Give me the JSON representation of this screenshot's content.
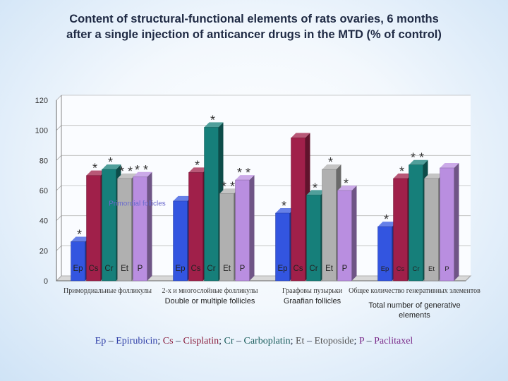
{
  "title_line1": "Content of structural-functional elements of rats ovaries, 6 months",
  "title_line2": "after a single injection of anticancer drugs in the MTD (% of control)",
  "chart_data": {
    "type": "bar",
    "ylim": [
      0,
      120
    ],
    "yticks": [
      0,
      20,
      40,
      60,
      80,
      100,
      120
    ],
    "grid": true,
    "series_codes": [
      "Ep",
      "Cs",
      "Cr",
      "Et",
      "P"
    ],
    "series_colors": [
      "#3355e0",
      "#a0204a",
      "#167f7a",
      "#b0b0b0",
      "#b98ee0"
    ],
    "categories": [
      {
        "label_ru": "Примордиальные фолликулы",
        "label_en": "",
        "inner_label": "Primordial follicles",
        "values": [
          26,
          70,
          74,
          68,
          69
        ],
        "asterisks": [
          "*",
          "*",
          "*",
          "* *",
          "* *"
        ]
      },
      {
        "label_ru": "2-х и многослойные фолликулы",
        "label_en": "Double or multiple follicles",
        "inner_label": "",
        "values": [
          53,
          72,
          102,
          58,
          67
        ],
        "asterisks": [
          "",
          "*",
          "*",
          "* *",
          "* *"
        ]
      },
      {
        "label_ru": "Граафовы пузырьки",
        "label_en": "Graafian follicles",
        "inner_label": "",
        "values": [
          45,
          95,
          57,
          74,
          60
        ],
        "asterisks": [
          "*",
          "",
          "*",
          "*",
          "*"
        ]
      },
      {
        "label_ru": "Общее количество генеративных элементов",
        "label_en": "Total number of generative elements",
        "inner_label": "",
        "values": [
          36,
          68,
          77,
          68,
          75
        ],
        "asterisks": [
          "*",
          "*",
          "* *",
          "",
          ""
        ]
      }
    ]
  },
  "legend": {
    "ep": "Ep",
    "ep_name": "Epirubicin",
    "cs": "Cs",
    "cs_name": "Cisplatin",
    "cr": "Cr",
    "cr_name": "Carboplatin",
    "et": "Et",
    "et_name": "Etoposide",
    "p": "P",
    "p_name": "Paclitaxel",
    "dash": " – ",
    "sep": "; "
  }
}
